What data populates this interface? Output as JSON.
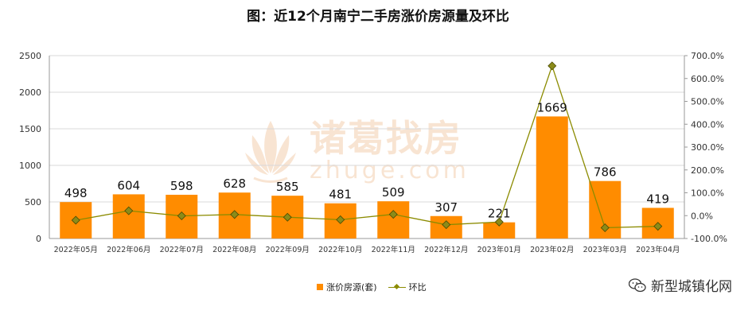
{
  "chart_data": {
    "type": "bar",
    "title": "图：近12个月南宁二手房涨价房源量及环比",
    "categories": [
      "2022年05月",
      "2022年06月",
      "2022年07月",
      "2022年08月",
      "2022年09月",
      "2022年10月",
      "2022年11月",
      "2022年12月",
      "2023年01月",
      "2023年02月",
      "2023年03月",
      "2023年04月"
    ],
    "series": [
      {
        "name": "涨价房源(套)",
        "type": "bar",
        "axis": "left",
        "color": "#ff8c00",
        "values": [
          498,
          604,
          598,
          628,
          585,
          481,
          509,
          307,
          221,
          1669,
          786,
          419
        ]
      },
      {
        "name": "环比",
        "type": "line",
        "axis": "right",
        "color": "#8b8b00",
        "values": [
          -20.0,
          21.3,
          -1.0,
          5.0,
          -6.8,
          -17.8,
          5.8,
          -39.7,
          -28.0,
          655.2,
          -52.9,
          -46.7
        ]
      }
    ],
    "left_axis": {
      "ylim": [
        0,
        2500
      ],
      "ticks": [
        "0",
        "500",
        "1000",
        "1500",
        "2000",
        "2500"
      ]
    },
    "right_axis": {
      "ylim": [
        -100,
        700
      ],
      "ticks": [
        "-100.0%",
        "0.0%",
        "100.0%",
        "200.0%",
        "300.0%",
        "400.0%",
        "500.0%",
        "600.0%",
        "700.0%"
      ]
    },
    "grid": true,
    "legend_position": "bottom"
  },
  "watermark": {
    "cn": "诸葛找房",
    "en": "zhuge.com"
  },
  "brand": {
    "text": "新型城镇化网"
  }
}
